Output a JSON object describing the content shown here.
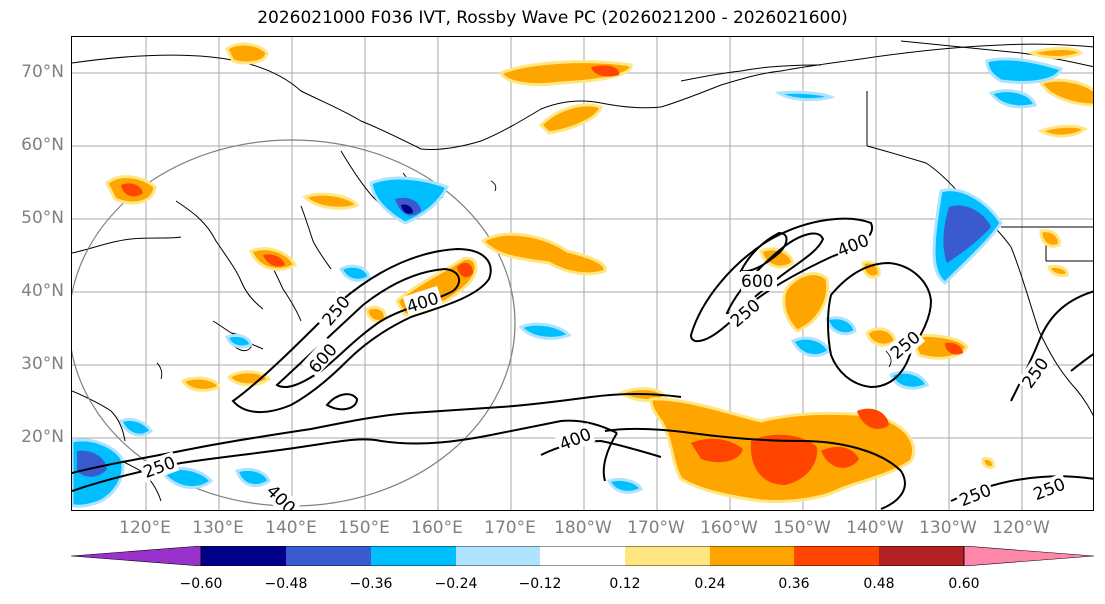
{
  "title": "2026021000 F036 IVT, Rossby Wave PC (2026021200 - 2026021600)",
  "lat_labels": [
    "70°N",
    "60°N",
    "50°N",
    "40°N",
    "30°N",
    "20°N"
  ],
  "lon_labels": [
    "120°E",
    "130°E",
    "140°E",
    "150°E",
    "160°E",
    "170°E",
    "180°W",
    "170°W",
    "160°W",
    "150°W",
    "140°W",
    "130°W",
    "120°W"
  ],
  "contour_labels": {
    "c250a": "250",
    "c600a": "600",
    "c400a": "400",
    "c400b": "400",
    "c600b": "600",
    "c250b": "250",
    "c250c": "250",
    "c250d": "250",
    "c400c": "400",
    "c400d": "400",
    "c250e": "250",
    "c250f": "250",
    "c250g": "250"
  },
  "colorbar": {
    "ticks": [
      "−0.60",
      "−0.48",
      "−0.36",
      "−0.24",
      "−0.12",
      "0.12",
      "0.24",
      "0.36",
      "0.48",
      "0.60"
    ],
    "colors": [
      "#9932cc",
      "#00008b",
      "#3a5bcf",
      "#00bfff",
      "#aee3ff",
      "#ffffff",
      "#ffe680",
      "#ffa500",
      "#ff4500",
      "#b22222",
      "#ff88aa"
    ]
  }
}
